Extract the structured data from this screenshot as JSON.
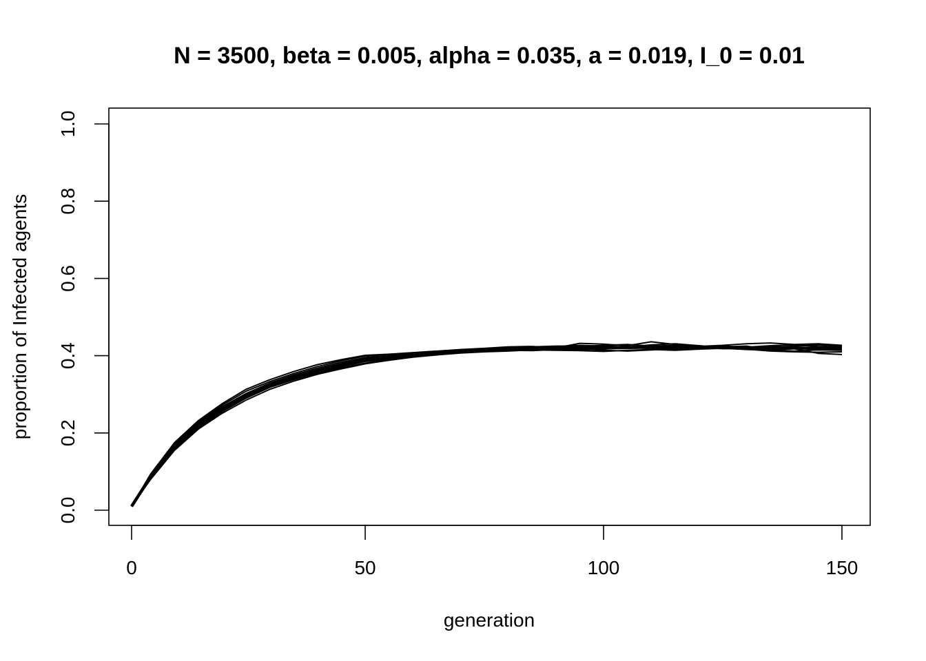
{
  "chart_data": {
    "type": "line",
    "title": "N = 3500, beta = 0.005, alpha = 0.035, a = 0.019, I_0 = 0.01",
    "xlabel": "generation",
    "ylabel": "proportion of Infected agents",
    "xlim": [
      1,
      150
    ],
    "ylim": [
      0.0,
      1.0
    ],
    "x_ticks": [
      "0",
      "50",
      "100",
      "150"
    ],
    "y_ticks": [
      "0.0",
      "0.2",
      "0.4",
      "0.6",
      "0.8",
      "1.0"
    ],
    "grid": false,
    "legend": "none",
    "line_color": "#000000",
    "x": [
      1,
      5,
      10,
      15,
      20,
      25,
      30,
      35,
      40,
      45,
      50,
      55,
      60,
      65,
      70,
      75,
      80,
      85,
      90,
      95,
      100,
      105,
      110,
      115,
      120,
      125,
      130,
      135,
      140,
      145,
      150
    ],
    "series": [
      {
        "values": [
          0.01,
          0.086,
          0.162,
          0.219,
          0.263,
          0.298,
          0.324,
          0.344,
          0.361,
          0.376,
          0.389,
          0.397,
          0.402,
          0.407,
          0.412,
          0.414,
          0.416,
          0.418,
          0.419,
          0.42,
          0.419,
          0.42,
          0.421,
          0.42,
          0.421,
          0.42,
          0.419,
          0.42,
          0.419,
          0.418,
          0.418
        ]
      },
      {
        "values": [
          0.01,
          0.09,
          0.17,
          0.226,
          0.268,
          0.302,
          0.329,
          0.35,
          0.368,
          0.383,
          0.395,
          0.401,
          0.405,
          0.409,
          0.413,
          0.416,
          0.42,
          0.422,
          0.424,
          0.427,
          0.425,
          0.423,
          0.428,
          0.431,
          0.426,
          0.42,
          0.418,
          0.421,
          0.425,
          0.428,
          0.424
        ]
      },
      {
        "values": [
          0.01,
          0.082,
          0.158,
          0.212,
          0.255,
          0.29,
          0.318,
          0.338,
          0.355,
          0.369,
          0.381,
          0.391,
          0.398,
          0.404,
          0.409,
          0.411,
          0.414,
          0.413,
          0.416,
          0.418,
          0.414,
          0.412,
          0.415,
          0.418,
          0.42,
          0.422,
          0.417,
          0.412,
          0.41,
          0.409,
          0.41
        ]
      },
      {
        "values": [
          0.01,
          0.094,
          0.175,
          0.232,
          0.276,
          0.313,
          0.338,
          0.359,
          0.377,
          0.39,
          0.401,
          0.404,
          0.408,
          0.412,
          0.416,
          0.419,
          0.423,
          0.424,
          0.42,
          0.432,
          0.43,
          0.426,
          0.436,
          0.429,
          0.424,
          0.427,
          0.431,
          0.433,
          0.429,
          0.431,
          0.427
        ]
      },
      {
        "values": [
          0.01,
          0.084,
          0.16,
          0.215,
          0.258,
          0.294,
          0.32,
          0.341,
          0.358,
          0.372,
          0.385,
          0.393,
          0.4,
          0.406,
          0.411,
          0.413,
          0.415,
          0.42,
          0.418,
          0.415,
          0.417,
          0.422,
          0.418,
          0.416,
          0.419,
          0.423,
          0.425,
          0.415,
          0.412,
          0.415,
          0.414
        ]
      },
      {
        "values": [
          0.01,
          0.088,
          0.166,
          0.222,
          0.265,
          0.3,
          0.327,
          0.346,
          0.364,
          0.379,
          0.392,
          0.398,
          0.403,
          0.408,
          0.412,
          0.418,
          0.419,
          0.417,
          0.421,
          0.423,
          0.421,
          0.419,
          0.423,
          0.425,
          0.422,
          0.418,
          0.42,
          0.424,
          0.422,
          0.42,
          0.419
        ]
      },
      {
        "values": [
          0.01,
          0.08,
          0.155,
          0.21,
          0.251,
          0.285,
          0.313,
          0.334,
          0.352,
          0.366,
          0.379,
          0.388,
          0.396,
          0.402,
          0.407,
          0.41,
          0.412,
          0.415,
          0.414,
          0.413,
          0.411,
          0.414,
          0.416,
          0.414,
          0.417,
          0.419,
          0.416,
          0.414,
          0.418,
          0.406,
          0.403
        ]
      },
      {
        "values": [
          0.01,
          0.092,
          0.172,
          0.229,
          0.272,
          0.308,
          0.333,
          0.354,
          0.372,
          0.387,
          0.399,
          0.403,
          0.407,
          0.411,
          0.414,
          0.417,
          0.421,
          0.423,
          0.425,
          0.424,
          0.427,
          0.429,
          0.425,
          0.427,
          0.423,
          0.425,
          0.422,
          0.426,
          0.428,
          0.424,
          0.422
        ]
      },
      {
        "values": [
          0.01,
          0.087,
          0.164,
          0.22,
          0.264,
          0.299,
          0.325,
          0.345,
          0.362,
          0.377,
          0.39,
          0.398,
          0.403,
          0.408,
          0.412,
          0.415,
          0.417,
          0.419,
          0.42,
          0.421,
          0.42,
          0.421,
          0.422,
          0.421,
          0.422,
          0.421,
          0.42,
          0.42,
          0.42,
          0.419,
          0.418
        ],
        "emphasis": true
      }
    ]
  }
}
